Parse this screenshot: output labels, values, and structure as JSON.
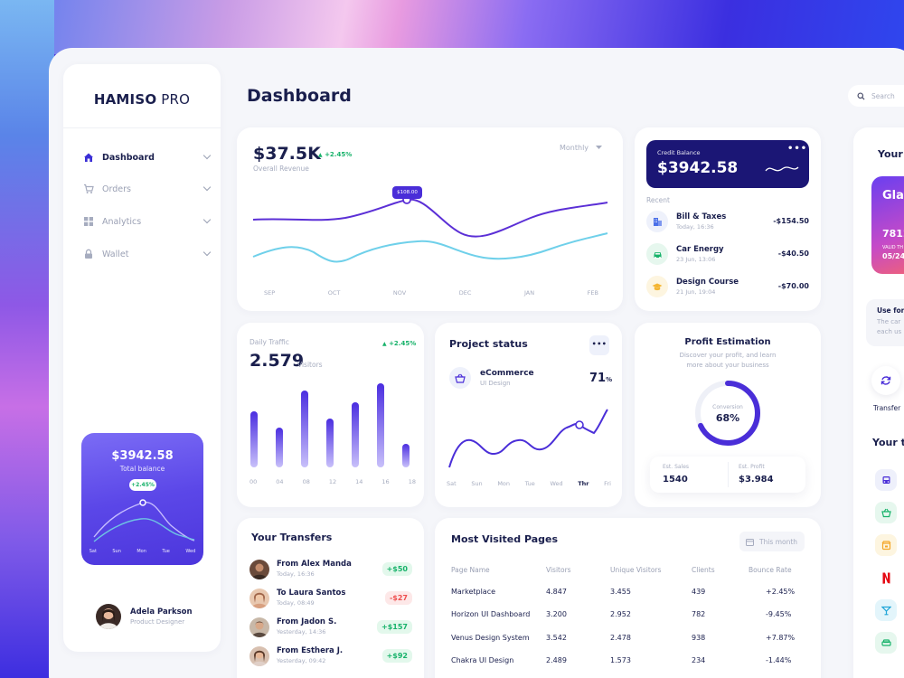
{
  "brand": {
    "name_bold": "HAMISO",
    "name_light": "PRO"
  },
  "sidebar": {
    "items": [
      {
        "label": "Dashboard",
        "icon": "home-icon"
      },
      {
        "label": "Orders",
        "icon": "cart-icon"
      },
      {
        "label": "Analytics",
        "icon": "grid-icon"
      },
      {
        "label": "Wallet",
        "icon": "lock-icon"
      }
    ],
    "balance_card": {
      "amount": "$3942.58",
      "label": "Total balance",
      "change": "+2.45%",
      "days": [
        "Sat",
        "Sun",
        "Mon",
        "Tue",
        "Wed"
      ]
    },
    "user": {
      "name": "Adela Parkson",
      "role": "Product Designer"
    }
  },
  "header": {
    "title": "Dashboard",
    "search_placeholder": "Search"
  },
  "revenue": {
    "amount": "$37.5K",
    "change": "+2.45%",
    "label": "Overall Revenue",
    "period": "Monthly",
    "tooltip": "$108.00",
    "months": [
      "SEP",
      "OCT",
      "NOV",
      "DEC",
      "JAN",
      "FEB"
    ]
  },
  "credit": {
    "label": "Credit Balance",
    "amount": "$3942.58",
    "recent_label": "Recent",
    "items": [
      {
        "title": "Bill & Taxes",
        "date": "Today, 16:36",
        "amount": "-$154.50",
        "icon": "building-icon"
      },
      {
        "title": "Car Energy",
        "date": "23 Jun, 13:06",
        "amount": "-$40.50",
        "icon": "car-icon"
      },
      {
        "title": "Design Course",
        "date": "21 Jun, 19:04",
        "amount": "-$70.00",
        "icon": "graduation-cap-icon"
      }
    ]
  },
  "traffic": {
    "label": "Daily Traffic",
    "value": "2.579",
    "unit": "Visitors",
    "change": "+2.45%",
    "hours": [
      "00",
      "04",
      "08",
      "12",
      "14",
      "16",
      "18"
    ]
  },
  "project": {
    "title": "Project status",
    "name": "eCommerce",
    "sub": "UI Design",
    "percent": "71",
    "percent_sign": "%",
    "days": [
      "Sat",
      "Sun",
      "Mon",
      "Tue",
      "Wed",
      "Thr",
      "Fri"
    ]
  },
  "profit": {
    "title": "Profit Estimation",
    "desc1": "Discover your profit, and learn",
    "desc2": "more about your business",
    "conv_label": "Conversion",
    "conv_value": "68%",
    "conversion_fraction": 0.68,
    "sales_label": "Est. Sales",
    "sales_value": "1540",
    "profit_label": "Est. Profit",
    "profit_value": "$3.984"
  },
  "transfers": {
    "title": "Your Transfers",
    "items": [
      {
        "name": "From Alex Manda",
        "date": "Today, 16:36",
        "amount": "+$50",
        "type": "g"
      },
      {
        "name": "To Laura Santos",
        "date": "Today, 08:49",
        "amount": "-$27",
        "type": "r"
      },
      {
        "name": "From Jadon S.",
        "date": "Yesterday, 14:36",
        "amount": "+$157",
        "type": "g"
      },
      {
        "name": "From Esthera J.",
        "date": "Yesterday, 09:42",
        "amount": "+$92",
        "type": "g"
      }
    ]
  },
  "pages": {
    "title": "Most Visited Pages",
    "filter": "This month",
    "headers": [
      "Page Name",
      "Visitors",
      "Unique Visitors",
      "Clients",
      "Bounce Rate"
    ],
    "rows": [
      [
        "Marketplace",
        "4.847",
        "3.455",
        "439",
        "+2.45%"
      ],
      [
        "Horizon UI Dashboard",
        "3.200",
        "2.952",
        "782",
        "-9.45%"
      ],
      [
        "Venus Design System",
        "3.542",
        "2.478",
        "938",
        "+7.87%"
      ],
      [
        "Chakra UI Design",
        "2.489",
        "1.573",
        "234",
        "-1.44%"
      ]
    ]
  },
  "right_panel": {
    "your_card": "Your C",
    "card_brand": "Glas",
    "card_number": "7812",
    "card_valid": "VALID TH",
    "card_date": "05/24",
    "use_for": "Use for",
    "use_desc1": "The car",
    "use_desc2": "each us",
    "transfer": "Transfer",
    "your_tr": "Your tr"
  }
}
